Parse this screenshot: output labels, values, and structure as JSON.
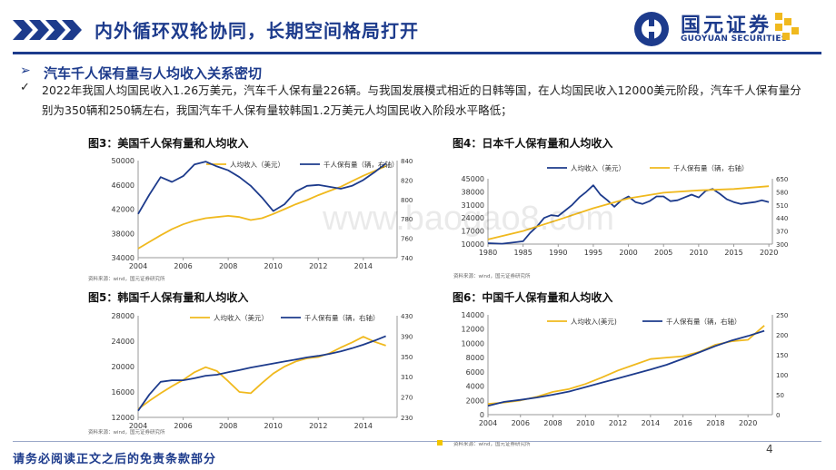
{
  "header": {
    "title": "内外循环双轮协同，长期空间格局打开",
    "logo_main": "国元证券",
    "logo_sub": "GUOYUAN SECURITIES"
  },
  "section": {
    "heading": "汽车千人保有量与人均收入关系密切",
    "paragraph": "2022年我国人均国民收入1.26万美元，汽车千人保有量226辆。与我国发展模式相近的日韩等国，在人均国民收入12000美元阶段，汽车千人保有量分别为350辆和250辆左右，我国汽车千人保有量较韩国1.2万美元人均国民收入阶段水平略低；"
  },
  "footer": {
    "disclaimer": "请务必阅读正文之后的免责条款部分",
    "page": "4"
  },
  "watermark": "www.baogao8.com",
  "colors": {
    "navy": "#1d3b8c",
    "income": "#f0b91e",
    "ownership": "#1d3b8c"
  },
  "chart_data": [
    {
      "id": "fig3",
      "caption": "图3：美国千人保有量和人均收入",
      "source": "资料来源：wind，国元证券研究所",
      "type": "line",
      "xticks": [
        "2004",
        "2006",
        "2008",
        "2010",
        "2012",
        "2014"
      ],
      "xlim": [
        2004,
        2015.5
      ],
      "ylim_left": [
        34000,
        50000
      ],
      "yticks_left": [
        "34000",
        "38000",
        "42000",
        "46000",
        "50000"
      ],
      "ylim_right": [
        740,
        840
      ],
      "yticks_right": [
        "740",
        "760",
        "780",
        "800",
        "820",
        "840"
      ],
      "series": [
        {
          "name": "人均收入（美元）",
          "axis": "left",
          "color": "#f0b91e",
          "x": [
            2004,
            2004.5,
            2005,
            2005.5,
            2006,
            2006.5,
            2007,
            2007.5,
            2008,
            2008.5,
            2009,
            2009.5,
            2010,
            2010.5,
            2011,
            2011.5,
            2012,
            2012.5,
            2013,
            2013.5,
            2014,
            2014.5,
            2015
          ],
          "values": [
            35500,
            36600,
            37700,
            38700,
            39500,
            40100,
            40500,
            40700,
            40900,
            40700,
            40200,
            40500,
            41200,
            42000,
            42800,
            43500,
            44300,
            45000,
            45700,
            46600,
            47500,
            48300,
            49100
          ]
        },
        {
          "name": "千人保有量（辆，右轴）",
          "axis": "right",
          "color": "#1d3b8c",
          "x": [
            2004,
            2004.5,
            2005,
            2005.5,
            2006,
            2006.5,
            2007,
            2007.5,
            2008,
            2008.5,
            2009,
            2009.5,
            2010,
            2010.5,
            2011,
            2011.5,
            2012,
            2012.5,
            2013,
            2013.5,
            2014,
            2014.5,
            2015
          ],
          "values": [
            785,
            805,
            823,
            818,
            824,
            836,
            839,
            834,
            830,
            823,
            814,
            802,
            788,
            795,
            808,
            814,
            815,
            813,
            811,
            814,
            820,
            828,
            837
          ]
        }
      ]
    },
    {
      "id": "fig4",
      "caption": "图4：日本千人保有量和人均收入",
      "source": "资料来源：wind，国元证券研究所",
      "type": "line",
      "xticks": [
        "1980",
        "1985",
        "1990",
        "1995",
        "2000",
        "2005",
        "2010",
        "2015",
        "2020"
      ],
      "xlim": [
        1980,
        2020.5
      ],
      "ylim_left": [
        10000,
        45000
      ],
      "yticks_left": [
        "10000",
        "17000",
        "24000",
        "31000",
        "38000",
        "45000"
      ],
      "ylim_right": [
        300,
        650
      ],
      "yticks_right": [
        "300",
        "370",
        "440",
        "510",
        "580",
        "650"
      ],
      "series": [
        {
          "name": "人均收入（美元）",
          "axis": "left",
          "color": "#1d3b8c",
          "x": [
            1980,
            1982,
            1984,
            1985,
            1986,
            1987,
            1988,
            1989,
            1990,
            1991,
            1992,
            1993,
            1994,
            1995,
            1996,
            1997,
            1998,
            1999,
            2000,
            2001,
            2002,
            2003,
            2004,
            2005,
            2006,
            2007,
            2008,
            2009,
            2010,
            2011,
            2012,
            2013,
            2014,
            2015,
            2016,
            2017,
            2018,
            2019,
            2020
          ],
          "values": [
            10500,
            10200,
            11000,
            11500,
            16000,
            19500,
            24000,
            25500,
            25000,
            28000,
            31000,
            35000,
            38000,
            41500,
            36500,
            33500,
            30000,
            33500,
            35500,
            32500,
            31500,
            33000,
            35500,
            35500,
            33000,
            33500,
            35000,
            36500,
            35000,
            38500,
            39500,
            37000,
            34000,
            32500,
            31500,
            32000,
            32500,
            33500,
            32500
          ]
        },
        {
          "name": "千人保有量（辆，右轴）",
          "axis": "right",
          "color": "#f0b91e",
          "x": [
            1980,
            1985,
            1990,
            1995,
            2000,
            2005,
            2010,
            2015,
            2020
          ],
          "values": [
            325,
            370,
            430,
            492,
            545,
            575,
            588,
            595,
            610
          ]
        }
      ]
    },
    {
      "id": "fig5",
      "caption": "图5：韩国千人保有量和人均收入",
      "source": "资料来源：wind，国元证券研究所",
      "type": "line",
      "xticks": [
        "2004",
        "2006",
        "2008",
        "2010",
        "2012",
        "2014"
      ],
      "xlim": [
        2004,
        2015.5
      ],
      "ylim_left": [
        12000,
        28000
      ],
      "yticks_left": [
        "12000",
        "16000",
        "20000",
        "24000",
        "28000"
      ],
      "ylim_right": [
        230,
        430
      ],
      "yticks_right": [
        "230",
        "270",
        "310",
        "350",
        "390",
        "430"
      ],
      "series": [
        {
          "name": "人均收入（美元）",
          "axis": "left",
          "color": "#f0b91e",
          "x": [
            2004,
            2004.5,
            2005,
            2005.5,
            2006,
            2006.5,
            2007,
            2007.5,
            2008,
            2008.5,
            2009,
            2009.5,
            2010,
            2010.5,
            2011,
            2011.5,
            2012,
            2012.5,
            2013,
            2013.5,
            2014,
            2014.5,
            2015
          ],
          "values": [
            13300,
            14600,
            15800,
            16900,
            17900,
            19100,
            19900,
            19300,
            17700,
            16000,
            15800,
            17400,
            18900,
            20000,
            20800,
            21300,
            21500,
            22100,
            23000,
            23800,
            24700,
            23900,
            23300
          ]
        },
        {
          "name": "千人保有量（辆，右轴）",
          "axis": "right",
          "color": "#1d3b8c",
          "x": [
            2004,
            2004.5,
            2005,
            2005.5,
            2006,
            2006.5,
            2007,
            2007.5,
            2008,
            2008.5,
            2009,
            2009.5,
            2010,
            2010.5,
            2011,
            2011.5,
            2012,
            2012.5,
            2013,
            2013.5,
            2014,
            2014.5,
            2015
          ],
          "values": [
            243,
            275,
            300,
            303,
            303,
            307,
            312,
            314,
            319,
            323,
            328,
            332,
            336,
            340,
            344,
            348,
            351,
            355,
            360,
            366,
            373,
            381,
            390
          ]
        }
      ]
    },
    {
      "id": "fig6",
      "caption": "图6：中国千人保有量和人均收入",
      "source": "资料来源：wind，国元证券研究所",
      "type": "line",
      "xticks": [
        "2004",
        "2006",
        "2008",
        "2010",
        "2012",
        "2014",
        "2016",
        "2018",
        "2020"
      ],
      "xlim": [
        2004,
        2021.5
      ],
      "ylim_left": [
        0,
        14000
      ],
      "yticks_left": [
        "0",
        "2000",
        "4000",
        "6000",
        "8000",
        "10000",
        "12000",
        "14000"
      ],
      "ylim_right": [
        0,
        250
      ],
      "yticks_right": [
        "0",
        "50",
        "100",
        "150",
        "200",
        "250"
      ],
      "series": [
        {
          "name": "人均收入(美元)",
          "axis": "left",
          "color": "#f0b91e",
          "x": [
            2004,
            2005,
            2006,
            2007,
            2008,
            2009,
            2010,
            2011,
            2012,
            2013,
            2014,
            2015,
            2016,
            2017,
            2018,
            2019,
            2020,
            2021
          ],
          "values": [
            1500,
            1700,
            2000,
            2500,
            3200,
            3600,
            4300,
            5200,
            6200,
            7000,
            7800,
            8000,
            8200,
            8800,
            9800,
            10300,
            10500,
            12500
          ]
        },
        {
          "name": "千人保有量（辆，右轴）",
          "axis": "right",
          "color": "#1d3b8c",
          "x": [
            2004,
            2005,
            2006,
            2007,
            2008,
            2009,
            2010,
            2011,
            2012,
            2013,
            2014,
            2015,
            2016,
            2017,
            2018,
            2019,
            2020,
            2021
          ],
          "values": [
            22,
            32,
            37,
            43,
            50,
            58,
            69,
            80,
            91,
            102,
            113,
            125,
            140,
            156,
            172,
            186,
            197,
            210
          ]
        }
      ]
    }
  ]
}
